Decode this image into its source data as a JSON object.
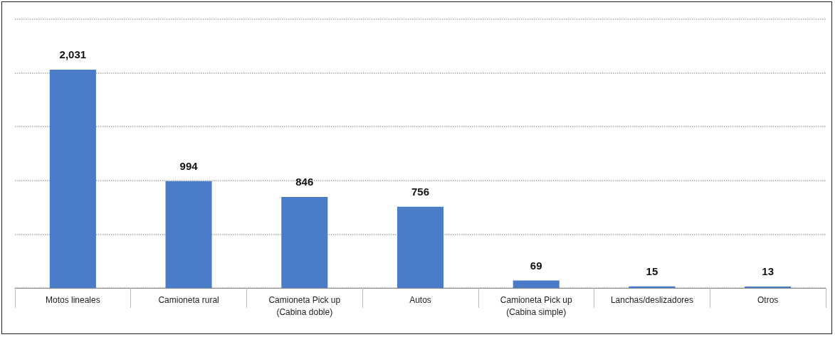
{
  "chart_data": {
    "type": "bar",
    "categories": [
      "Motos lineales",
      "Camioneta rural",
      "Camioneta Pick up\n(Cabina doble)",
      "Autos",
      "Camioneta Pick up\n(Cabina simple)",
      "Lanchas/deslizadores",
      "Otros"
    ],
    "values": [
      2031,
      994,
      846,
      756,
      69,
      15,
      13
    ],
    "color": "#4a7cc8",
    "data_labels": true,
    "value_labels": [
      "2,031",
      "994",
      "846",
      "756",
      "69",
      "15",
      "13"
    ],
    "ylim": [
      0,
      2500
    ],
    "yticks": [
      {
        "value": 0,
        "label": null
      },
      {
        "value": 500,
        "label": null
      },
      {
        "value": 1000,
        "label": null
      },
      {
        "value": 1500,
        "label": null
      },
      {
        "value": 2000,
        "label": null
      },
      {
        "value": 2500,
        "label": null
      }
    ],
    "grid": "y",
    "tick_labels": "x"
  }
}
